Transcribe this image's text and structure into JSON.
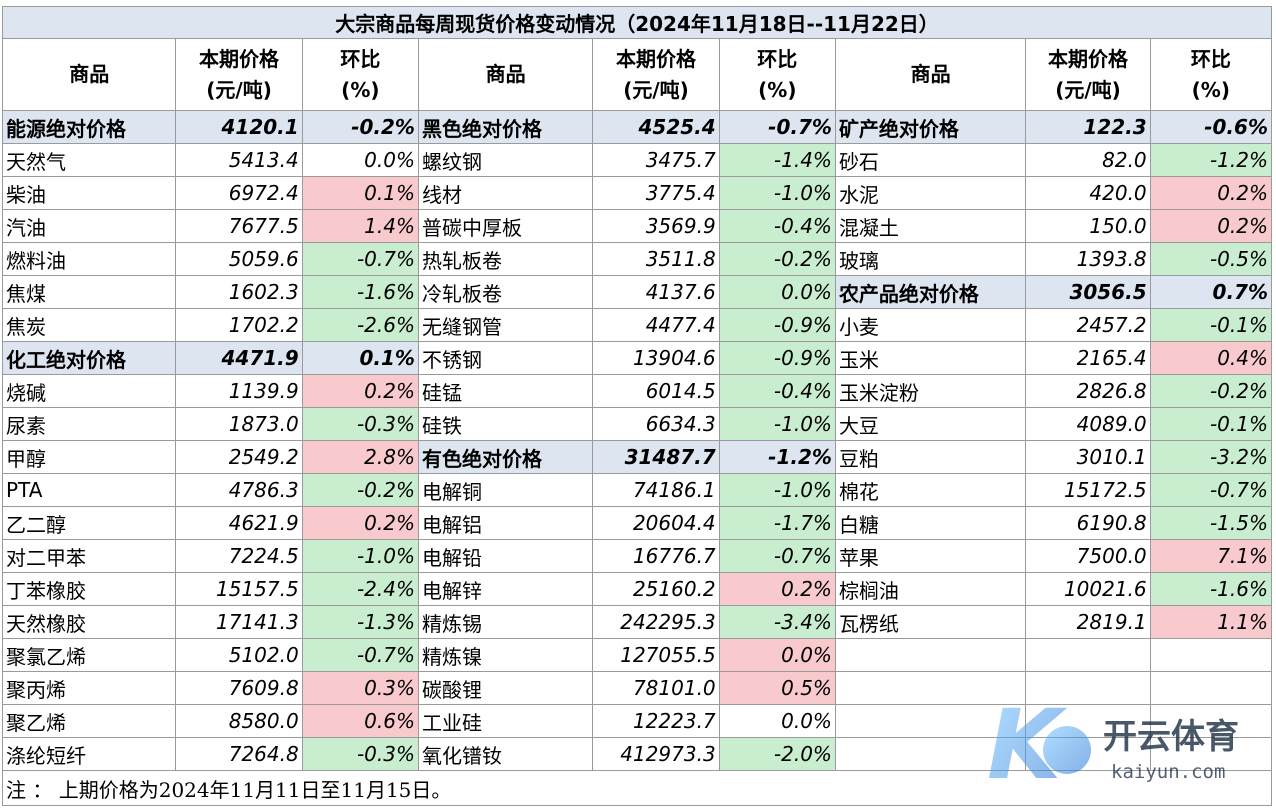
{
  "title": "大宗商品每周现货价格变动情况（2024年11月18日--11月22日）",
  "headers": {
    "name": "商品",
    "price_l1": "本期价格",
    "price_l2": "(元/吨)",
    "chg_l1": "环比",
    "chg_l2": "(%)"
  },
  "note": "注 ： 上期价格为2024年11月11日至11月15日。",
  "watermark": {
    "cn": "开云体育",
    "en": "kaiyun.com",
    "letter": "K"
  },
  "colors": {
    "header_blue": "#dde6f0",
    "up_red": "#f8c9cd",
    "down_green": "#c9edcf"
  },
  "rows": [
    [
      {
        "n": "能源绝对价格",
        "p": "4120.1",
        "c": "-0.2%",
        "cat": true
      },
      {
        "n": "黑色绝对价格",
        "p": "4525.4",
        "c": "-0.7%",
        "cat": true
      },
      {
        "n": "矿产绝对价格",
        "p": "122.3",
        "c": "-0.6%",
        "cat": true
      }
    ],
    [
      {
        "n": "天然气",
        "p": "5413.4",
        "c": "0.0%",
        "t": "flat"
      },
      {
        "n": "螺纹钢",
        "p": "3475.7",
        "c": "-1.4%",
        "t": "down"
      },
      {
        "n": "砂石",
        "p": "82.0",
        "c": "-1.2%",
        "t": "down"
      }
    ],
    [
      {
        "n": "柴油",
        "p": "6972.4",
        "c": "0.1%",
        "t": "up"
      },
      {
        "n": "线材",
        "p": "3775.4",
        "c": "-1.0%",
        "t": "down"
      },
      {
        "n": "水泥",
        "p": "420.0",
        "c": "0.2%",
        "t": "up"
      }
    ],
    [
      {
        "n": "汽油",
        "p": "7677.5",
        "c": "1.4%",
        "t": "up"
      },
      {
        "n": "普碳中厚板",
        "p": "3569.9",
        "c": "-0.4%",
        "t": "down"
      },
      {
        "n": "混凝土",
        "p": "150.0",
        "c": "0.2%",
        "t": "up"
      }
    ],
    [
      {
        "n": "燃料油",
        "p": "5059.6",
        "c": "-0.7%",
        "t": "down"
      },
      {
        "n": "热轧板卷",
        "p": "3511.8",
        "c": "-0.2%",
        "t": "down"
      },
      {
        "n": "玻璃",
        "p": "1393.8",
        "c": "-0.5%",
        "t": "down"
      }
    ],
    [
      {
        "n": "焦煤",
        "p": "1602.3",
        "c": "-1.6%",
        "t": "down"
      },
      {
        "n": "冷轧板卷",
        "p": "4137.6",
        "c": "0.0%",
        "t": "down"
      },
      {
        "n": "农产品绝对价格",
        "p": "3056.5",
        "c": "0.7%",
        "cat": true
      }
    ],
    [
      {
        "n": "焦炭",
        "p": "1702.2",
        "c": "-2.6%",
        "t": "down"
      },
      {
        "n": "无缝钢管",
        "p": "4477.4",
        "c": "-0.9%",
        "t": "down"
      },
      {
        "n": "小麦",
        "p": "2457.2",
        "c": "-0.1%",
        "t": "down"
      }
    ],
    [
      {
        "n": "化工绝对价格",
        "p": "4471.9",
        "c": "0.1%",
        "cat": true
      },
      {
        "n": "不锈钢",
        "p": "13904.6",
        "c": "-0.9%",
        "t": "down"
      },
      {
        "n": "玉米",
        "p": "2165.4",
        "c": "0.4%",
        "t": "up"
      }
    ],
    [
      {
        "n": "烧碱",
        "p": "1139.9",
        "c": "0.2%",
        "t": "up"
      },
      {
        "n": "硅锰",
        "p": "6014.5",
        "c": "-0.4%",
        "t": "down"
      },
      {
        "n": "玉米淀粉",
        "p": "2826.8",
        "c": "-0.2%",
        "t": "down"
      }
    ],
    [
      {
        "n": "尿素",
        "p": "1873.0",
        "c": "-0.3%",
        "t": "down"
      },
      {
        "n": "硅铁",
        "p": "6634.3",
        "c": "-1.0%",
        "t": "down"
      },
      {
        "n": "大豆",
        "p": "4089.0",
        "c": "-0.1%",
        "t": "down"
      }
    ],
    [
      {
        "n": "甲醇",
        "p": "2549.2",
        "c": "2.8%",
        "t": "up"
      },
      {
        "n": "有色绝对价格",
        "p": "31487.7",
        "c": "-1.2%",
        "cat": true
      },
      {
        "n": "豆粕",
        "p": "3010.1",
        "c": "-3.2%",
        "t": "down"
      }
    ],
    [
      {
        "n": "PTA",
        "p": "4786.3",
        "c": "-0.2%",
        "t": "down"
      },
      {
        "n": "电解铜",
        "p": "74186.1",
        "c": "-1.0%",
        "t": "down"
      },
      {
        "n": "棉花",
        "p": "15172.5",
        "c": "-0.7%",
        "t": "down"
      }
    ],
    [
      {
        "n": "乙二醇",
        "p": "4621.9",
        "c": "0.2%",
        "t": "up"
      },
      {
        "n": "电解铝",
        "p": "20604.4",
        "c": "-1.7%",
        "t": "down"
      },
      {
        "n": "白糖",
        "p": "6190.8",
        "c": "-1.5%",
        "t": "down"
      }
    ],
    [
      {
        "n": "对二甲苯",
        "p": "7224.5",
        "c": "-1.0%",
        "t": "down"
      },
      {
        "n": "电解铅",
        "p": "16776.7",
        "c": "-0.7%",
        "t": "down"
      },
      {
        "n": "苹果",
        "p": "7500.0",
        "c": "7.1%",
        "t": "up"
      }
    ],
    [
      {
        "n": "丁苯橡胶",
        "p": "15157.5",
        "c": "-2.4%",
        "t": "down"
      },
      {
        "n": "电解锌",
        "p": "25160.2",
        "c": "0.2%",
        "t": "up"
      },
      {
        "n": "棕榈油",
        "p": "10021.6",
        "c": "-1.6%",
        "t": "down"
      }
    ],
    [
      {
        "n": "天然橡胶",
        "p": "17141.3",
        "c": "-1.3%",
        "t": "down"
      },
      {
        "n": "精炼锡",
        "p": "242295.3",
        "c": "-3.4%",
        "t": "down"
      },
      {
        "n": "瓦楞纸",
        "p": "2819.1",
        "c": "1.1%",
        "t": "up"
      }
    ],
    [
      {
        "n": "聚氯乙烯",
        "p": "5102.0",
        "c": "-0.7%",
        "t": "down"
      },
      {
        "n": "精炼镍",
        "p": "127055.5",
        "c": "0.0%",
        "t": "up"
      },
      {
        "n": "",
        "p": "",
        "c": "",
        "t": "flat"
      }
    ],
    [
      {
        "n": "聚丙烯",
        "p": "7609.8",
        "c": "0.3%",
        "t": "up"
      },
      {
        "n": "碳酸锂",
        "p": "78101.0",
        "c": "0.5%",
        "t": "up"
      },
      {
        "n": "",
        "p": "",
        "c": "",
        "t": "flat"
      }
    ],
    [
      {
        "n": "聚乙烯",
        "p": "8580.0",
        "c": "0.6%",
        "t": "up"
      },
      {
        "n": "工业硅",
        "p": "12223.7",
        "c": "0.0%",
        "t": "flat"
      },
      {
        "n": "",
        "p": "",
        "c": "",
        "t": "flat"
      }
    ],
    [
      {
        "n": "涤纶短纤",
        "p": "7264.8",
        "c": "-0.3%",
        "t": "down"
      },
      {
        "n": "氧化镨钕",
        "p": "412973.3",
        "c": "-2.0%",
        "t": "down"
      },
      {
        "n": "",
        "p": "",
        "c": "",
        "t": "flat"
      }
    ]
  ]
}
